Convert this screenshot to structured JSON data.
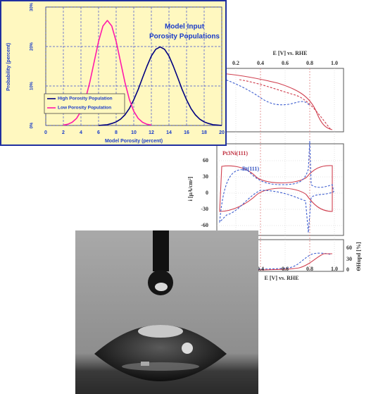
{
  "chart_data": {
    "type": "line",
    "title": [
      "Model Input",
      "Porosity Populations"
    ],
    "xlabel": "Model Porosity (percent)",
    "ylabel": "Probability (percent)",
    "x": [
      2,
      2.5,
      3,
      3.5,
      4,
      4.5,
      5,
      5.5,
      6,
      6.5,
      7,
      7.5,
      8,
      8.5,
      9,
      9.5,
      10,
      10.5,
      11,
      11.5,
      12,
      12.5,
      13,
      13.5,
      14,
      14.5,
      15,
      15.5,
      16,
      16.5,
      17,
      17.5,
      18,
      18.5,
      19,
      19.5,
      20
    ],
    "series": [
      {
        "name": "High Porosity Population",
        "color": "#000080",
        "values": [
          null,
          null,
          null,
          null,
          null,
          null,
          null,
          null,
          0.0,
          0.1,
          0.2,
          0.5,
          0.9,
          1.6,
          2.7,
          4.3,
          6.5,
          9.1,
          12.1,
          15.0,
          17.6,
          19.3,
          19.9,
          19.3,
          17.6,
          15.0,
          12.1,
          9.1,
          6.5,
          4.3,
          2.7,
          1.6,
          0.9,
          0.5,
          0.2,
          0.1,
          0.0
        ]
      },
      {
        "name": "Low Porosity Population",
        "color": "#ff1aaa",
        "values": [
          0.1,
          0.3,
          0.8,
          1.8,
          3.6,
          6.6,
          10.9,
          16.1,
          21.3,
          25.2,
          26.6,
          25.2,
          21.3,
          16.1,
          10.9,
          6.6,
          3.6,
          1.8,
          0.8,
          0.3,
          0.1,
          null,
          null,
          null,
          null,
          null,
          null,
          null,
          null,
          null,
          null,
          null,
          null,
          null,
          null,
          null,
          null
        ]
      }
    ],
    "xlim": [
      0,
      20
    ],
    "xticks": [
      0,
      2,
      4,
      6,
      8,
      10,
      12,
      14,
      16,
      18,
      20
    ],
    "ylim": [
      0,
      30
    ],
    "yticks": [
      {
        "value": 0,
        "label": "0%"
      },
      {
        "value": 10,
        "label": "10%"
      },
      {
        "value": 20,
        "label": "20%"
      },
      {
        "value": 30,
        "label": "30%"
      }
    ],
    "grid": true,
    "legend": "lower left"
  },
  "figure": {
    "top_axis_label": "E [V] vs. RHE",
    "top_ticks": [
      "0.2",
      "0.4",
      "0.6",
      "0.8",
      "1.0"
    ],
    "panel_labels": [
      "Pt3Ni(111)",
      "Pt(111)"
    ],
    "y_label": "i [µA/cm²]",
    "y_ticks": [
      "60",
      "30",
      "0",
      "-30",
      "-60"
    ],
    "right_label": "ΘHupd [%]",
    "right_ticks": [
      "60",
      "30",
      "0"
    ],
    "bottom_ticks": [
      "0.4",
      "0.6",
      "0.8",
      "1.0"
    ],
    "bottom_axis_label": "E [V] vs. RHE"
  }
}
